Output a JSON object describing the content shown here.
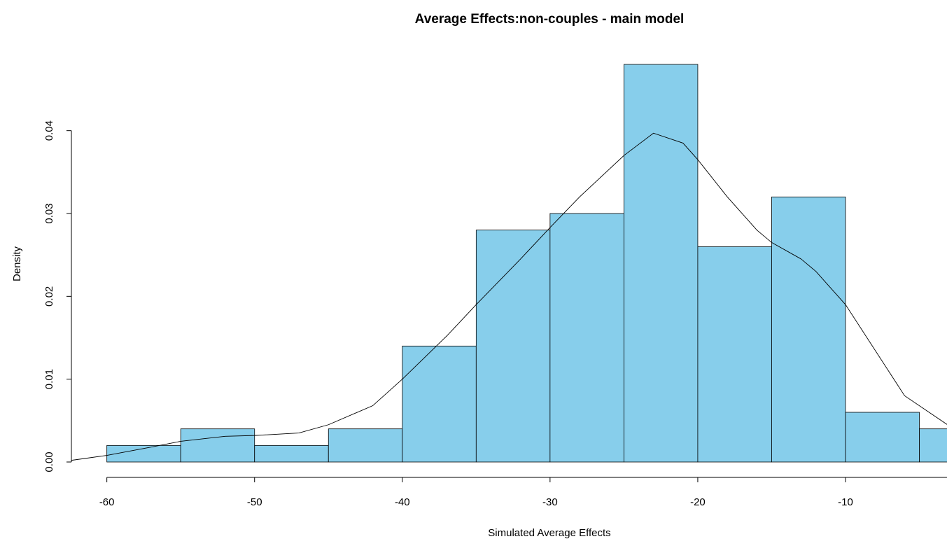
{
  "chart_data": {
    "type": "histogram",
    "title": "Average Effects:non-couples - main model",
    "xlabel": "Simulated Average Effects",
    "ylabel": "Density",
    "bins": [
      -60,
      -55,
      -50,
      -45,
      -40,
      -35,
      -30,
      -25,
      -20,
      -15,
      -10,
      -5,
      0
    ],
    "values": [
      0.002,
      0.004,
      0.002,
      0.004,
      0.014,
      0.028,
      0.03,
      0.048,
      0.026,
      0.032,
      0.006,
      0.004
    ],
    "color": "#87ceeb",
    "density": {
      "x": [
        -62.4,
        -60,
        -57,
        -55,
        -52,
        -50,
        -47,
        -45,
        -42,
        -40,
        -37,
        -35,
        -32,
        -30,
        -28,
        -25,
        -23,
        -21,
        -20,
        -18,
        -16,
        -15,
        -13,
        -12,
        -10,
        -8,
        -6,
        -3.1
      ],
      "values": [
        0.0002,
        0.0008,
        0.0018,
        0.0025,
        0.0031,
        0.0032,
        0.0035,
        0.0045,
        0.0068,
        0.01,
        0.0152,
        0.019,
        0.0245,
        0.0283,
        0.032,
        0.037,
        0.0397,
        0.0385,
        0.0365,
        0.032,
        0.028,
        0.0265,
        0.0245,
        0.023,
        0.019,
        0.0135,
        0.008,
        0.0045
      ]
    },
    "xlim": [
      -62.4,
      -3.13
    ],
    "ylim": [
      0,
      0.048
    ],
    "xticks": [
      -60,
      -50,
      -40,
      -30,
      -20,
      -10
    ],
    "yticks": [
      {
        "value": 0,
        "label": "0.00"
      },
      0.01,
      0.02,
      0.03,
      0.04
    ]
  }
}
